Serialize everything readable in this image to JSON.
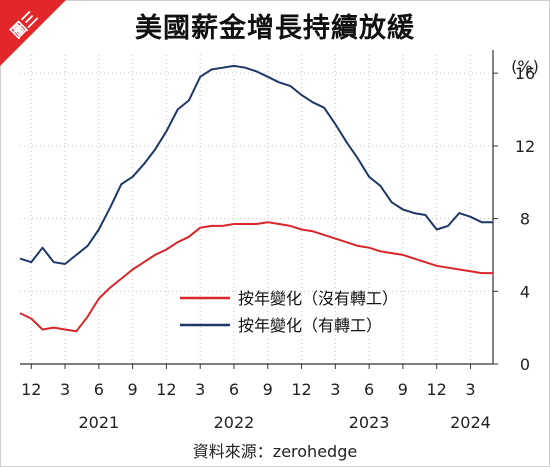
{
  "badge": {
    "text": "圖三",
    "color": "#e2272b"
  },
  "title": "美國薪金增長持續放緩",
  "source": "資料來源：zerohedge",
  "chart_data": {
    "type": "line",
    "title": "美國薪金增長持續放緩",
    "y_unit_label": "(%)",
    "ylim": [
      0,
      17
    ],
    "y_ticks": [
      0,
      4,
      8,
      12,
      16
    ],
    "x_range": [
      "2020-11",
      "2024-05"
    ],
    "x_tick_dates": [
      "2020-12",
      "2021-03",
      "2021-06",
      "2021-09",
      "2021-12",
      "2022-03",
      "2022-06",
      "2022-09",
      "2022-12",
      "2023-03",
      "2023-06",
      "2023-09",
      "2023-12",
      "2024-03"
    ],
    "x_tick_labels": [
      "12",
      "3",
      "6",
      "9",
      "12",
      "3",
      "6",
      "9",
      "12",
      "3",
      "6",
      "9",
      "12",
      "3"
    ],
    "year_labels": [
      {
        "date": "2021-06",
        "label": "2021"
      },
      {
        "date": "2022-06",
        "label": "2022"
      },
      {
        "date": "2023-06",
        "label": "2023"
      },
      {
        "date": "2024-03",
        "label": "2024"
      }
    ],
    "grid": true,
    "legend_position": "lower-center",
    "x": [
      "2020-11",
      "2020-12",
      "2021-01",
      "2021-02",
      "2021-03",
      "2021-04",
      "2021-05",
      "2021-06",
      "2021-07",
      "2021-08",
      "2021-09",
      "2021-10",
      "2021-11",
      "2021-12",
      "2022-01",
      "2022-02",
      "2022-03",
      "2022-04",
      "2022-05",
      "2022-06",
      "2022-07",
      "2022-08",
      "2022-09",
      "2022-10",
      "2022-11",
      "2022-12",
      "2023-01",
      "2023-02",
      "2023-03",
      "2023-04",
      "2023-05",
      "2023-06",
      "2023-07",
      "2023-08",
      "2023-09",
      "2023-10",
      "2023-11",
      "2023-12",
      "2024-01",
      "2024-02",
      "2024-03",
      "2024-04",
      "2024-05"
    ],
    "series": [
      {
        "name": "按年變化（沒有轉工）",
        "color": "#d9262b",
        "values": [
          2.8,
          2.5,
          1.9,
          2.0,
          1.9,
          1.8,
          2.6,
          3.6,
          4.2,
          4.7,
          5.2,
          5.6,
          6.0,
          6.3,
          6.7,
          7.0,
          7.5,
          7.6,
          7.6,
          7.7,
          7.7,
          7.7,
          7.8,
          7.7,
          7.6,
          7.4,
          7.3,
          7.1,
          6.9,
          6.7,
          6.5,
          6.4,
          6.2,
          6.1,
          6.0,
          5.8,
          5.6,
          5.4,
          5.3,
          5.2,
          5.1,
          5.0,
          5.0
        ]
      },
      {
        "name": "按年變化（有轉工）",
        "color": "#1f3768",
        "values": [
          5.8,
          5.6,
          6.4,
          5.6,
          5.5,
          6.0,
          6.5,
          7.4,
          8.6,
          9.9,
          10.3,
          11.0,
          11.8,
          12.8,
          14.0,
          14.5,
          15.8,
          16.2,
          16.3,
          16.4,
          16.3,
          16.1,
          15.8,
          15.5,
          15.3,
          14.8,
          14.4,
          14.1,
          13.2,
          12.2,
          11.3,
          10.3,
          9.8,
          8.9,
          8.5,
          8.3,
          8.2,
          7.4,
          7.6,
          8.3,
          8.1,
          7.8,
          7.8
        ]
      }
    ]
  }
}
